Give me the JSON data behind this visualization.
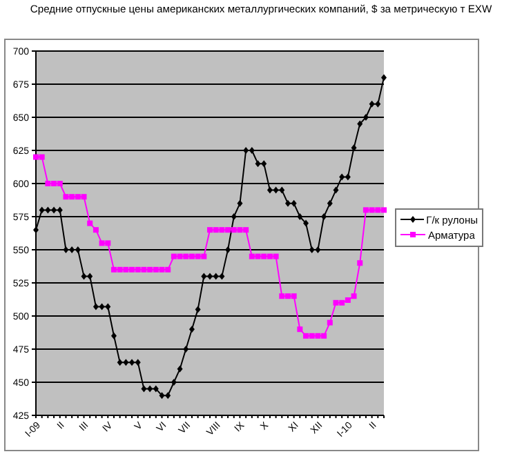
{
  "chart_data": {
    "type": "line",
    "title": "Средние отпускные цены американских металлургических компаний, $ за метрическую т EXW",
    "categories": [
      "I-09",
      null,
      null,
      null,
      "II",
      null,
      null,
      null,
      "III",
      null,
      null,
      null,
      "IV",
      null,
      null,
      null,
      null,
      "V",
      null,
      null,
      null,
      "VI",
      null,
      null,
      null,
      "VII",
      null,
      null,
      null,
      null,
      "VIII",
      null,
      null,
      null,
      "IX",
      null,
      null,
      null,
      "X",
      null,
      null,
      null,
      null,
      "XI",
      null,
      null,
      null,
      "XII",
      null,
      null,
      null,
      null,
      "I-10",
      null,
      null,
      null,
      "II",
      null,
      null
    ],
    "series": [
      {
        "name": "Г/к рулоны",
        "color": "#000000",
        "marker": "diamond",
        "values": [
          565,
          580,
          580,
          580,
          580,
          550,
          550,
          550,
          530,
          530,
          507,
          507,
          507,
          485,
          465,
          465,
          465,
          465,
          445,
          445,
          445,
          440,
          440,
          450,
          460,
          475,
          490,
          505,
          530,
          530,
          530,
          530,
          550,
          575,
          585,
          625,
          625,
          615,
          615,
          595,
          595,
          595,
          585,
          585,
          575,
          570,
          550,
          550,
          575,
          585,
          595,
          605,
          605,
          627,
          645,
          650,
          660,
          660,
          680
        ]
      },
      {
        "name": "Арматура",
        "color": "#ff00ff",
        "marker": "square",
        "values": [
          620,
          620,
          600,
          600,
          600,
          590,
          590,
          590,
          590,
          570,
          565,
          555,
          555,
          535,
          535,
          535,
          535,
          535,
          535,
          535,
          535,
          535,
          535,
          545,
          545,
          545,
          545,
          545,
          545,
          565,
          565,
          565,
          565,
          565,
          565,
          565,
          545,
          545,
          545,
          545,
          545,
          515,
          515,
          515,
          490,
          485,
          485,
          485,
          485,
          495,
          510,
          510,
          512,
          515,
          540,
          580,
          580,
          580,
          580
        ]
      }
    ],
    "ylim": [
      425,
      700
    ],
    "yticks": [
      425,
      450,
      475,
      500,
      525,
      550,
      575,
      600,
      625,
      650,
      675,
      700
    ],
    "grid": "y",
    "legend": "right"
  }
}
